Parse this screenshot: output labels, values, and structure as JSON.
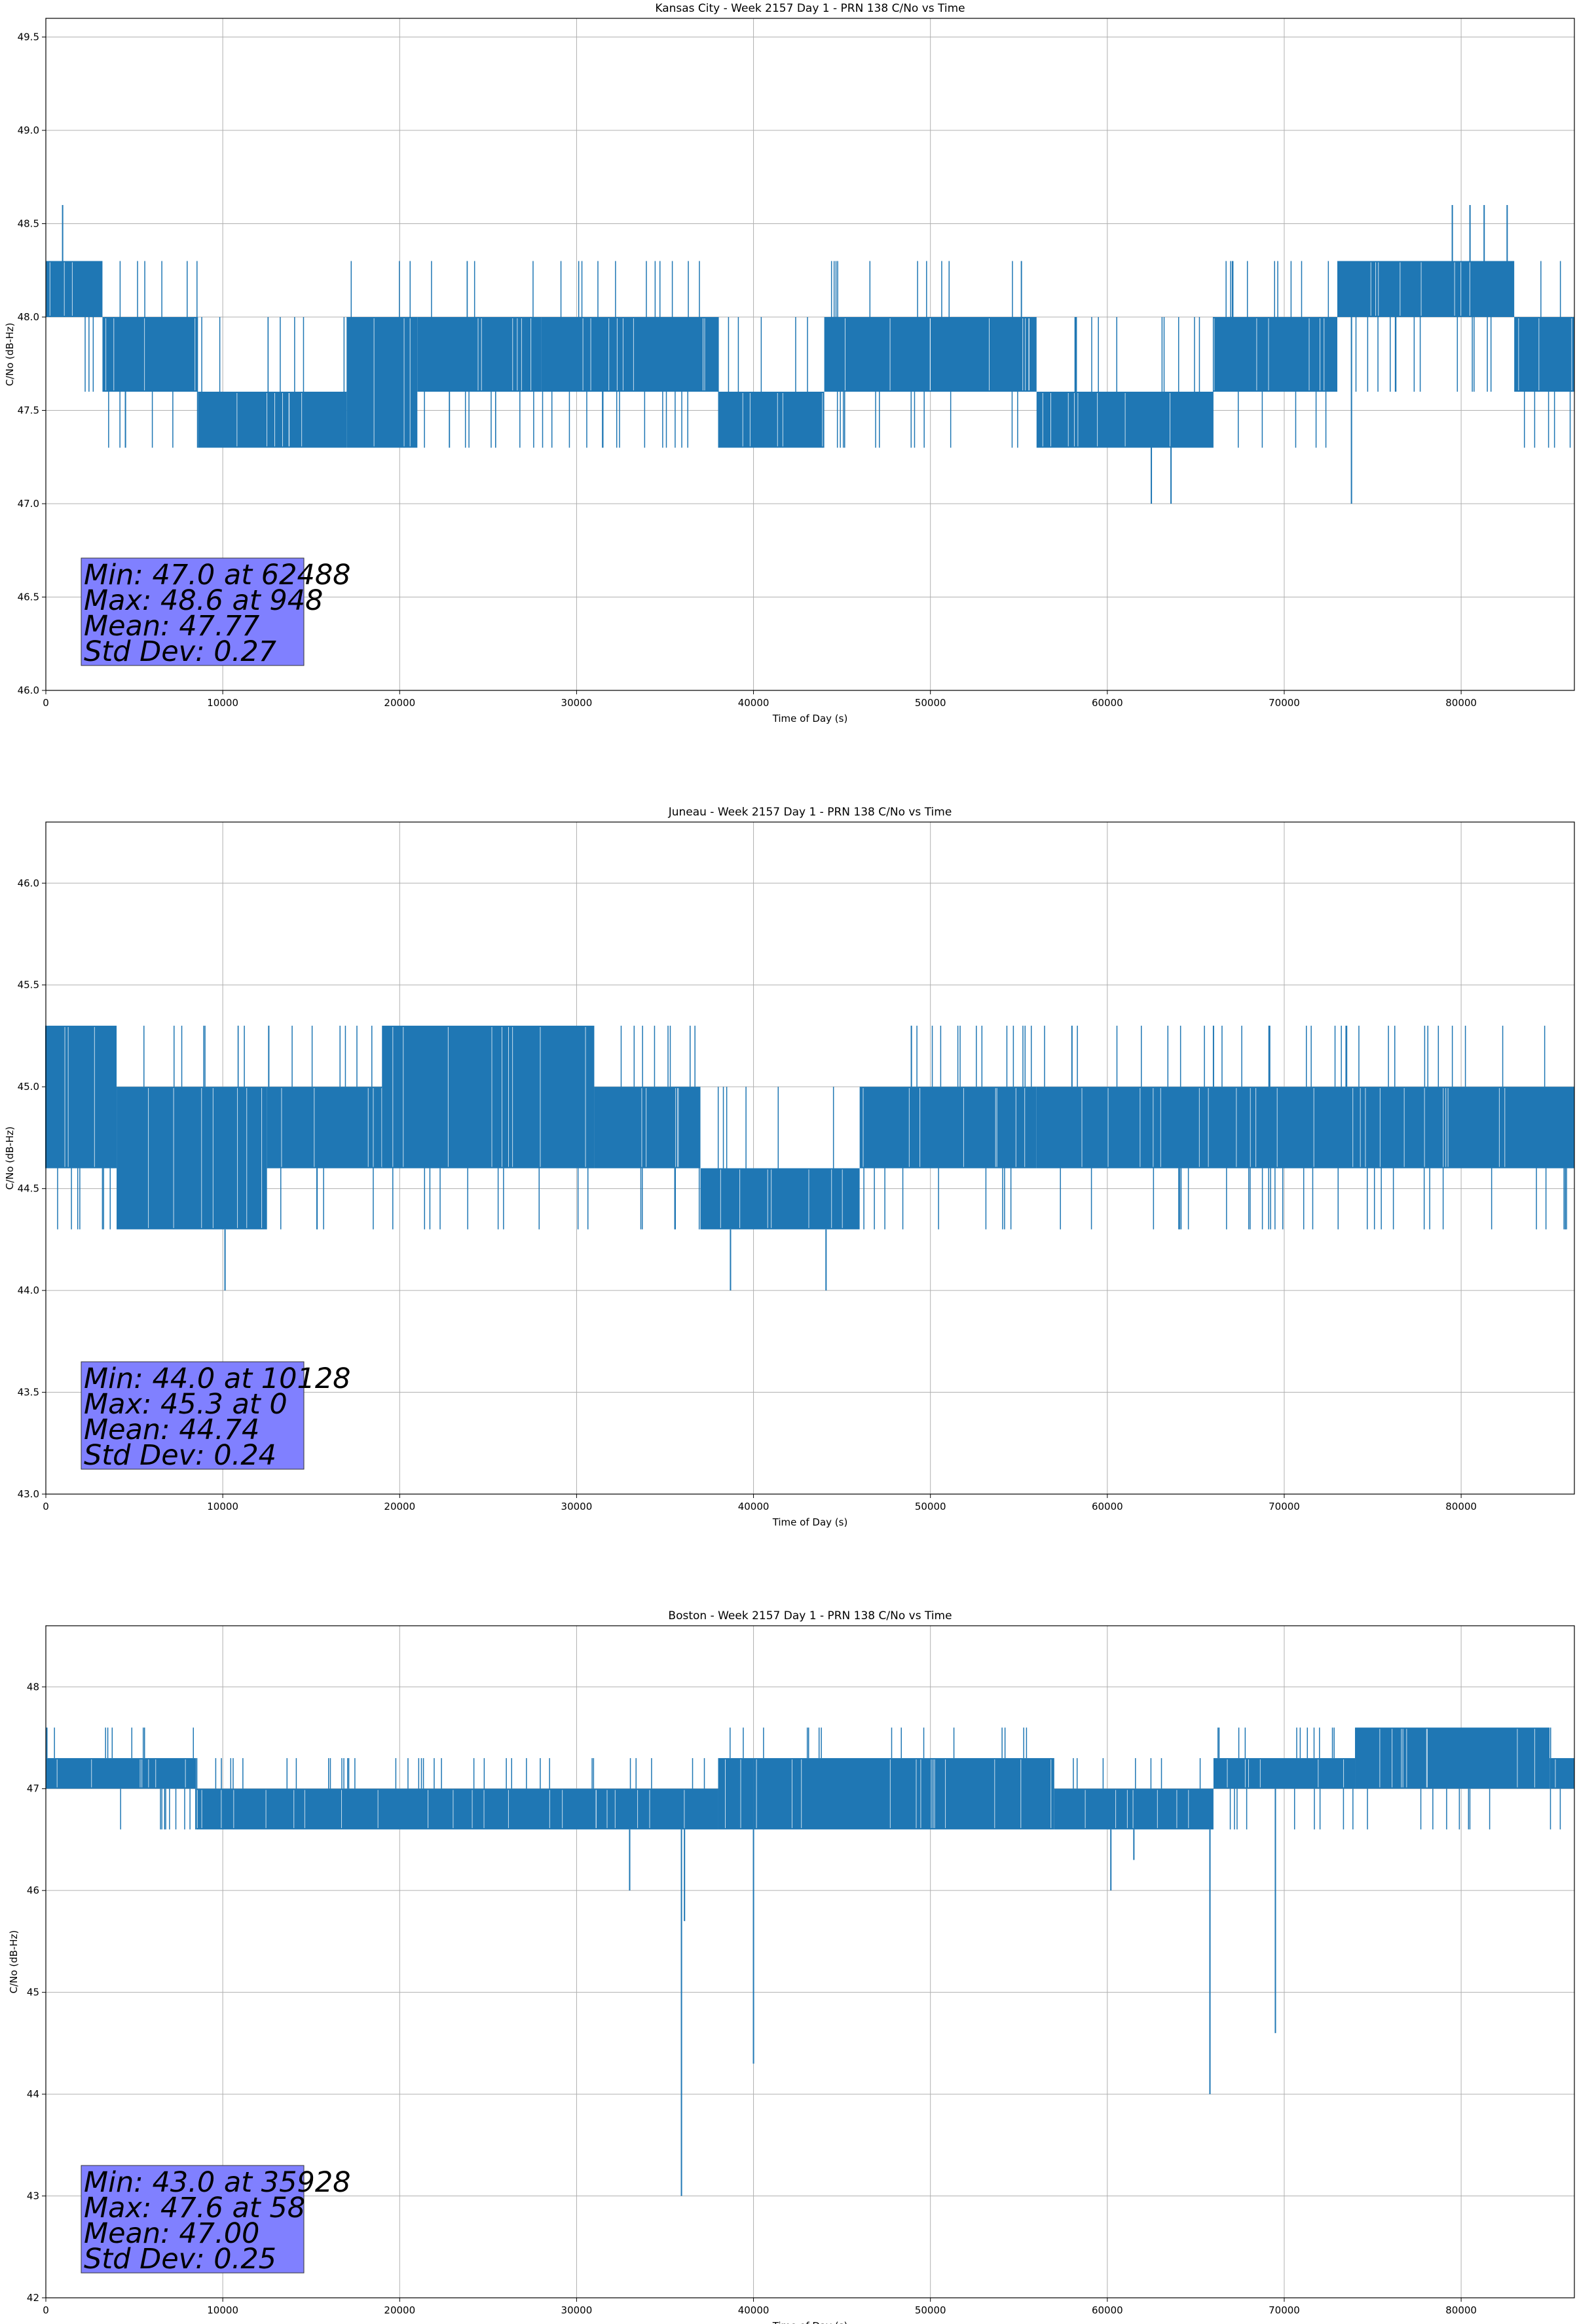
{
  "chart_data": [
    {
      "type": "line",
      "title": "Kansas City - Week 2157 Day 1 - PRN 138 C/No vs Time",
      "xlabel": "Time of Day (s)",
      "ylabel": "C/No (dB-Hz)",
      "xlim": [
        0,
        86400
      ],
      "ylim": [
        46.0,
        49.6
      ],
      "xticks": [
        0,
        10000,
        20000,
        30000,
        40000,
        50000,
        60000,
        70000,
        80000
      ],
      "yticks": [
        46.0,
        46.5,
        47.0,
        47.5,
        48.0,
        48.5,
        49.0,
        49.5
      ],
      "ytick_decimals": 1,
      "grid": true,
      "series_color": "#1f77b4",
      "levels": [
        47.3,
        47.6,
        48.0,
        48.3
      ],
      "segments": [
        {
          "x0": 0,
          "x1": 3200,
          "lo": 48.0,
          "hi": 48.3
        },
        {
          "x0": 3200,
          "x1": 8600,
          "lo": 47.6,
          "hi": 48.0
        },
        {
          "x0": 8600,
          "x1": 17000,
          "lo": 47.3,
          "hi": 47.6
        },
        {
          "x0": 17000,
          "x1": 21000,
          "lo": 47.3,
          "hi": 48.0
        },
        {
          "x0": 21000,
          "x1": 28000,
          "lo": 47.6,
          "hi": 48.0
        },
        {
          "x0": 28000,
          "x1": 38000,
          "lo": 47.6,
          "hi": 48.0
        },
        {
          "x0": 38000,
          "x1": 44000,
          "lo": 47.3,
          "hi": 47.6
        },
        {
          "x0": 44000,
          "x1": 56000,
          "lo": 47.6,
          "hi": 48.0
        },
        {
          "x0": 56000,
          "x1": 66000,
          "lo": 47.3,
          "hi": 47.6
        },
        {
          "x0": 66000,
          "x1": 73000,
          "lo": 47.6,
          "hi": 48.0
        },
        {
          "x0": 73000,
          "x1": 83000,
          "lo": 48.0,
          "hi": 48.3
        },
        {
          "x0": 83000,
          "x1": 86400,
          "lo": 47.6,
          "hi": 48.0
        }
      ],
      "spikes": [
        {
          "x": 948,
          "y": 48.6
        },
        {
          "x": 4500,
          "y": 47.3
        },
        {
          "x": 62488,
          "y": 47.0
        },
        {
          "x": 63600,
          "y": 47.0
        },
        {
          "x": 73800,
          "y": 47.0
        },
        {
          "x": 79500,
          "y": 48.6
        },
        {
          "x": 80500,
          "y": 48.6
        },
        {
          "x": 81300,
          "y": 48.6
        },
        {
          "x": 82600,
          "y": 48.6
        }
      ],
      "stats": [
        "Min: 47.0 at 62488",
        "Max: 48.6 at 948",
        "Mean: 47.77",
        "Std Dev: 0.27"
      ]
    },
    {
      "type": "line",
      "title": "Juneau - Week 2157 Day 1 - PRN 138 C/No vs Time",
      "xlabel": "Time of Day (s)",
      "ylabel": "C/No (dB-Hz)",
      "xlim": [
        0,
        86400
      ],
      "ylim": [
        43.0,
        46.3
      ],
      "xticks": [
        0,
        10000,
        20000,
        30000,
        40000,
        50000,
        60000,
        70000,
        80000
      ],
      "yticks": [
        43.0,
        43.5,
        44.0,
        44.5,
        45.0,
        45.5,
        46.0
      ],
      "ytick_decimals": 1,
      "grid": true,
      "series_color": "#1f77b4",
      "levels": [
        44.3,
        44.6,
        45.0,
        45.3
      ],
      "segments": [
        {
          "x0": 0,
          "x1": 4000,
          "lo": 44.6,
          "hi": 45.3
        },
        {
          "x0": 4000,
          "x1": 12500,
          "lo": 44.3,
          "hi": 45.0
        },
        {
          "x0": 12500,
          "x1": 19000,
          "lo": 44.6,
          "hi": 45.0
        },
        {
          "x0": 19000,
          "x1": 31000,
          "lo": 44.6,
          "hi": 45.3
        },
        {
          "x0": 31000,
          "x1": 37000,
          "lo": 44.6,
          "hi": 45.0
        },
        {
          "x0": 37000,
          "x1": 46000,
          "lo": 44.3,
          "hi": 44.6
        },
        {
          "x0": 46000,
          "x1": 56000,
          "lo": 44.6,
          "hi": 45.0
        },
        {
          "x0": 56000,
          "x1": 86400,
          "lo": 44.6,
          "hi": 45.0
        }
      ],
      "spikes": [
        {
          "x": 0,
          "y": 45.3
        },
        {
          "x": 10128,
          "y": 44.0
        },
        {
          "x": 38700,
          "y": 44.0
        },
        {
          "x": 44100,
          "y": 44.0
        },
        {
          "x": 12600,
          "y": 45.3
        },
        {
          "x": 58000,
          "y": 45.3
        },
        {
          "x": 66000,
          "y": 45.3
        }
      ],
      "stats": [
        "Min: 44.0 at 10128",
        "Max: 45.3 at 0",
        "Mean: 44.74",
        "Std Dev: 0.24"
      ]
    },
    {
      "type": "line",
      "title": "Boston - Week 2157 Day 1 - PRN 138 C/No vs Time",
      "xlabel": "Time of Day (s)",
      "ylabel": "C/No (dB-Hz)",
      "xlim": [
        0,
        86400
      ],
      "ylim": [
        42,
        48.6
      ],
      "xticks": [
        0,
        10000,
        20000,
        30000,
        40000,
        50000,
        60000,
        70000,
        80000
      ],
      "yticks": [
        42,
        43,
        44,
        45,
        46,
        47,
        48
      ],
      "ytick_decimals": 0,
      "grid": true,
      "series_color": "#1f77b4",
      "levels": [
        46.6,
        47.0,
        47.3,
        47.6
      ],
      "segments": [
        {
          "x0": 0,
          "x1": 8500,
          "lo": 47.0,
          "hi": 47.3
        },
        {
          "x0": 8500,
          "x1": 38000,
          "lo": 46.6,
          "hi": 47.0
        },
        {
          "x0": 38000,
          "x1": 40000,
          "lo": 46.6,
          "hi": 47.3
        },
        {
          "x0": 40000,
          "x1": 57000,
          "lo": 46.6,
          "hi": 47.3
        },
        {
          "x0": 57000,
          "x1": 66000,
          "lo": 46.6,
          "hi": 47.0
        },
        {
          "x0": 66000,
          "x1": 74000,
          "lo": 47.0,
          "hi": 47.3
        },
        {
          "x0": 74000,
          "x1": 85000,
          "lo": 47.0,
          "hi": 47.6
        },
        {
          "x": 0,
          "x0": 85000,
          "x1": 86400,
          "lo": 47.0,
          "hi": 47.3
        }
      ],
      "spikes": [
        {
          "x": 58,
          "y": 47.6
        },
        {
          "x": 35928,
          "y": 43.0
        },
        {
          "x": 36100,
          "y": 45.7
        },
        {
          "x": 40000,
          "y": 44.3
        },
        {
          "x": 65800,
          "y": 44.0
        },
        {
          "x": 69500,
          "y": 44.6
        },
        {
          "x": 33000,
          "y": 46.0
        },
        {
          "x": 60200,
          "y": 46.0
        },
        {
          "x": 61500,
          "y": 46.3
        }
      ],
      "stats": [
        "Min: 43.0 at 35928",
        "Max: 47.6 at 58",
        "Mean: 47.00",
        "Std Dev: 0.25"
      ]
    }
  ]
}
